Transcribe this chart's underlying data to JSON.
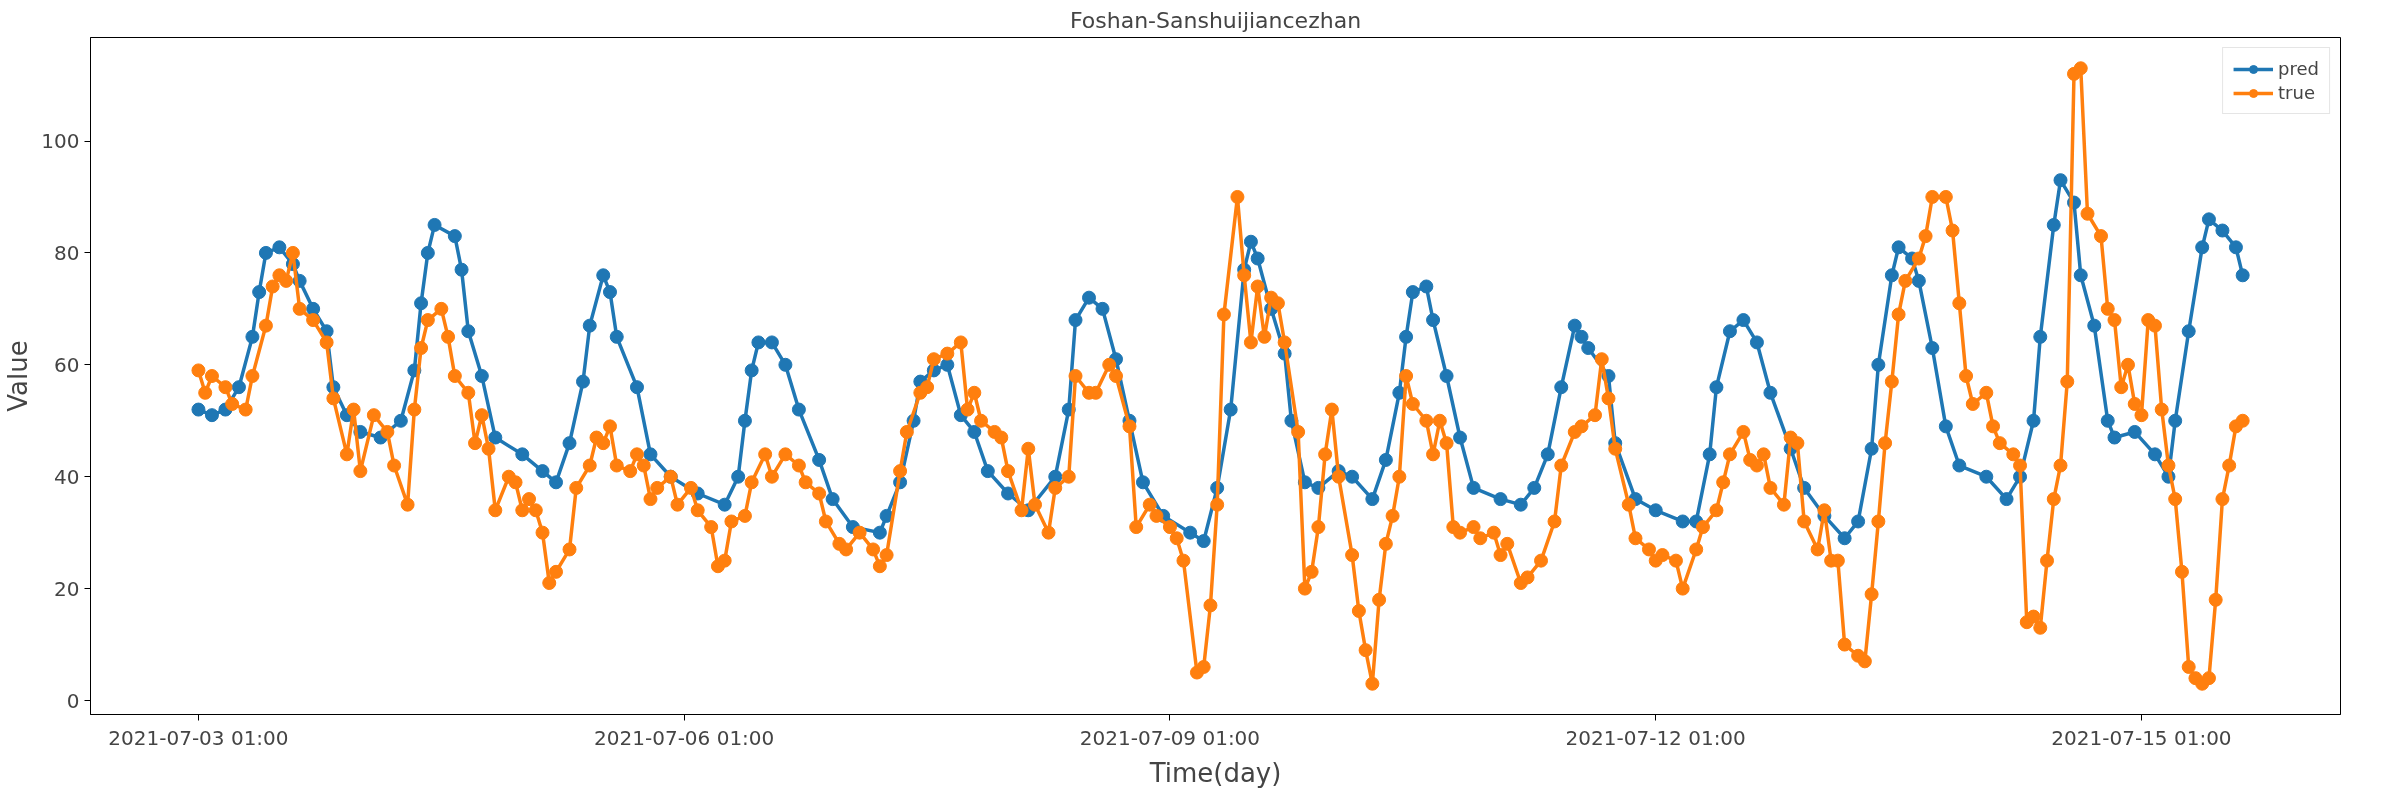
{
  "chart_data": {
    "type": "line",
    "title": "Foshan-Sanshuijiancezhan",
    "xlabel": "Time(day)",
    "ylabel": "Value",
    "xlim": [
      "2021-07-02T09:00",
      "2021-07-16T06:30"
    ],
    "ylim": [
      -2.5,
      118.5
    ],
    "xticks": [
      {
        "value": "2021-07-03T01:00",
        "label": "2021-07-03 01:00"
      },
      {
        "value": "2021-07-06T01:00",
        "label": "2021-07-06 01:00"
      },
      {
        "value": "2021-07-09T01:00",
        "label": "2021-07-09 01:00"
      },
      {
        "value": "2021-07-12T01:00",
        "label": "2021-07-12 01:00"
      },
      {
        "value": "2021-07-15T01:00",
        "label": "2021-07-15 01:00"
      }
    ],
    "yticks": [
      0,
      20,
      40,
      60,
      80,
      100
    ],
    "grid": false,
    "legend": "top right",
    "marker": "circle",
    "line_style": "solid",
    "series": [
      {
        "name": "pred",
        "color": "#1f77b4",
        "x": [
          "2021-07-03T01:00",
          "2021-07-03T03:00",
          "2021-07-03T05:00",
          "2021-07-03T07:00",
          "2021-07-03T09:00",
          "2021-07-03T10:00",
          "2021-07-03T11:00",
          "2021-07-03T13:00",
          "2021-07-03T15:00",
          "2021-07-03T16:00",
          "2021-07-03T18:00",
          "2021-07-03T20:00",
          "2021-07-03T21:00",
          "2021-07-03T23:00",
          "2021-07-04T01:00",
          "2021-07-04T04:00",
          "2021-07-04T07:00",
          "2021-07-04T09:00",
          "2021-07-04T10:00",
          "2021-07-04T11:00",
          "2021-07-04T12:00",
          "2021-07-04T15:00",
          "2021-07-04T16:00",
          "2021-07-04T17:00",
          "2021-07-04T19:00",
          "2021-07-04T21:00",
          "2021-07-05T01:00",
          "2021-07-05T04:00",
          "2021-07-05T06:00",
          "2021-07-05T08:00",
          "2021-07-05T10:00",
          "2021-07-05T11:00",
          "2021-07-05T13:00",
          "2021-07-05T14:00",
          "2021-07-05T15:00",
          "2021-07-05T18:00",
          "2021-07-05T20:00",
          "2021-07-05T23:00",
          "2021-07-06T03:00",
          "2021-07-06T07:00",
          "2021-07-06T09:00",
          "2021-07-06T10:00",
          "2021-07-06T11:00",
          "2021-07-06T12:00",
          "2021-07-06T14:00",
          "2021-07-06T16:00",
          "2021-07-06T18:00",
          "2021-07-06T21:00",
          "2021-07-06T23:00",
          "2021-07-07T02:00",
          "2021-07-07T06:00",
          "2021-07-07T07:00",
          "2021-07-07T09:00",
          "2021-07-07T11:00",
          "2021-07-07T12:00",
          "2021-07-07T14:00",
          "2021-07-07T16:00",
          "2021-07-07T18:00",
          "2021-07-07T20:00",
          "2021-07-07T22:00",
          "2021-07-08T01:00",
          "2021-07-08T04:00",
          "2021-07-08T08:00",
          "2021-07-08T10:00",
          "2021-07-08T11:00",
          "2021-07-08T13:00",
          "2021-07-08T15:00",
          "2021-07-08T17:00",
          "2021-07-08T19:00",
          "2021-07-08T21:00",
          "2021-07-09T00:00",
          "2021-07-09T04:00",
          "2021-07-09T06:00",
          "2021-07-09T08:00",
          "2021-07-09T10:00",
          "2021-07-09T12:00",
          "2021-07-09T13:00",
          "2021-07-09T14:00",
          "2021-07-09T16:00",
          "2021-07-09T18:00",
          "2021-07-09T19:00",
          "2021-07-09T21:00",
          "2021-07-09T23:00",
          "2021-07-10T02:00",
          "2021-07-10T04:00",
          "2021-07-10T07:00",
          "2021-07-10T09:00",
          "2021-07-10T11:00",
          "2021-07-10T12:00",
          "2021-07-10T13:00",
          "2021-07-10T15:00",
          "2021-07-10T16:00",
          "2021-07-10T18:00",
          "2021-07-10T20:00",
          "2021-07-10T22:00",
          "2021-07-11T02:00",
          "2021-07-11T05:00",
          "2021-07-11T07:00",
          "2021-07-11T09:00",
          "2021-07-11T11:00",
          "2021-07-11T13:00",
          "2021-07-11T14:00",
          "2021-07-11T15:00",
          "2021-07-11T18:00",
          "2021-07-11T19:00",
          "2021-07-11T22:00",
          "2021-07-12T01:00",
          "2021-07-12T05:00",
          "2021-07-12T07:00",
          "2021-07-12T09:00",
          "2021-07-12T10:00",
          "2021-07-12T12:00",
          "2021-07-12T14:00",
          "2021-07-12T16:00",
          "2021-07-12T18:00",
          "2021-07-12T21:00",
          "2021-07-12T23:00",
          "2021-07-13T02:00",
          "2021-07-13T05:00",
          "2021-07-13T07:00",
          "2021-07-13T09:00",
          "2021-07-13T10:00",
          "2021-07-13T12:00",
          "2021-07-13T13:00",
          "2021-07-13T15:00",
          "2021-07-13T16:00",
          "2021-07-13T18:00",
          "2021-07-13T20:00",
          "2021-07-13T22:00",
          "2021-07-14T02:00",
          "2021-07-14T05:00",
          "2021-07-14T07:00",
          "2021-07-14T09:00",
          "2021-07-14T10:00",
          "2021-07-14T12:00",
          "2021-07-14T13:00",
          "2021-07-14T15:00",
          "2021-07-14T16:00",
          "2021-07-14T18:00",
          "2021-07-14T20:00",
          "2021-07-14T21:00",
          "2021-07-15T00:00",
          "2021-07-15T03:00",
          "2021-07-15T05:00",
          "2021-07-15T06:00",
          "2021-07-15T08:00",
          "2021-07-15T10:00",
          "2021-07-15T11:00",
          "2021-07-15T13:00",
          "2021-07-15T15:00",
          "2021-07-15T16:00"
        ],
        "values": [
          52,
          51,
          52,
          56,
          65,
          73,
          80,
          81,
          78,
          75,
          70,
          66,
          56,
          51,
          48,
          47,
          50,
          59,
          71,
          80,
          85,
          83,
          77,
          66,
          58,
          47,
          44,
          41,
          39,
          46,
          57,
          67,
          76,
          73,
          65,
          56,
          44,
          40,
          37,
          35,
          40,
          50,
          59,
          64,
          64,
          60,
          52,
          43,
          36,
          31,
          30,
          33,
          39,
          50,
          57,
          59,
          60,
          51,
          48,
          41,
          37,
          34,
          40,
          52,
          68,
          72,
          70,
          61,
          50,
          39,
          33,
          30,
          28.5,
          38,
          52,
          77,
          82,
          79,
          70,
          62,
          50,
          39,
          38,
          41,
          40,
          36,
          43,
          55,
          65,
          73,
          74,
          68,
          58,
          47,
          38,
          36,
          35,
          38,
          44,
          56,
          67,
          65,
          63,
          58,
          46,
          36,
          34,
          32,
          32,
          44,
          56,
          66,
          68,
          64,
          55,
          45,
          38,
          33,
          29,
          32,
          45,
          60,
          76,
          81,
          79,
          75,
          63,
          49,
          42,
          40,
          36,
          40,
          50,
          65,
          85,
          93,
          89,
          76,
          67,
          50,
          47,
          48,
          44,
          40,
          50,
          66,
          81,
          86,
          84,
          81,
          76
        ]
      },
      {
        "name": "true",
        "color": "#ff7f0e",
        "x": [
          "2021-07-03T01:00",
          "2021-07-03T02:00",
          "2021-07-03T03:00",
          "2021-07-03T05:00",
          "2021-07-03T06:00",
          "2021-07-03T08:00",
          "2021-07-03T09:00",
          "2021-07-03T11:00",
          "2021-07-03T12:00",
          "2021-07-03T13:00",
          "2021-07-03T14:00",
          "2021-07-03T15:00",
          "2021-07-03T16:00",
          "2021-07-03T18:00",
          "2021-07-03T20:00",
          "2021-07-03T21:00",
          "2021-07-03T23:00",
          "2021-07-04T00:00",
          "2021-07-04T01:00",
          "2021-07-04T03:00",
          "2021-07-04T05:00",
          "2021-07-04T06:00",
          "2021-07-04T08:00",
          "2021-07-04T09:00",
          "2021-07-04T10:00",
          "2021-07-04T11:00",
          "2021-07-04T13:00",
          "2021-07-04T14:00",
          "2021-07-04T15:00",
          "2021-07-04T17:00",
          "2021-07-04T18:00",
          "2021-07-04T19:00",
          "2021-07-04T20:00",
          "2021-07-04T21:00",
          "2021-07-04T23:00",
          "2021-07-05T00:00",
          "2021-07-05T01:00",
          "2021-07-05T02:00",
          "2021-07-05T03:00",
          "2021-07-05T04:00",
          "2021-07-05T05:00",
          "2021-07-05T06:00",
          "2021-07-05T08:00",
          "2021-07-05T09:00",
          "2021-07-05T11:00",
          "2021-07-05T12:00",
          "2021-07-05T13:00",
          "2021-07-05T14:00",
          "2021-07-05T15:00",
          "2021-07-05T17:00",
          "2021-07-05T18:00",
          "2021-07-05T19:00",
          "2021-07-05T20:00",
          "2021-07-05T21:00",
          "2021-07-05T23:00",
          "2021-07-06T00:00",
          "2021-07-06T02:00",
          "2021-07-06T03:00",
          "2021-07-06T05:00",
          "2021-07-06T06:00",
          "2021-07-06T07:00",
          "2021-07-06T08:00",
          "2021-07-06T10:00",
          "2021-07-06T11:00",
          "2021-07-06T13:00",
          "2021-07-06T14:00",
          "2021-07-06T16:00",
          "2021-07-06T18:00",
          "2021-07-06T19:00",
          "2021-07-06T21:00",
          "2021-07-06T22:00",
          "2021-07-07T00:00",
          "2021-07-07T01:00",
          "2021-07-07T03:00",
          "2021-07-07T05:00",
          "2021-07-07T06:00",
          "2021-07-07T07:00",
          "2021-07-07T09:00",
          "2021-07-07T10:00",
          "2021-07-07T12:00",
          "2021-07-07T13:00",
          "2021-07-07T14:00",
          "2021-07-07T16:00",
          "2021-07-07T18:00",
          "2021-07-07T19:00",
          "2021-07-07T20:00",
          "2021-07-07T21:00",
          "2021-07-07T23:00",
          "2021-07-08T00:00",
          "2021-07-08T01:00",
          "2021-07-08T03:00",
          "2021-07-08T04:00",
          "2021-07-08T05:00",
          "2021-07-08T07:00",
          "2021-07-08T08:00",
          "2021-07-08T10:00",
          "2021-07-08T11:00",
          "2021-07-08T13:00",
          "2021-07-08T14:00",
          "2021-07-08T16:00",
          "2021-07-08T17:00",
          "2021-07-08T19:00",
          "2021-07-08T20:00",
          "2021-07-08T22:00",
          "2021-07-08T23:00",
          "2021-07-09T01:00",
          "2021-07-09T02:00",
          "2021-07-09T03:00",
          "2021-07-09T05:00",
          "2021-07-09T06:00",
          "2021-07-09T07:00",
          "2021-07-09T08:00",
          "2021-07-09T09:00",
          "2021-07-09T11:00",
          "2021-07-09T12:00",
          "2021-07-09T13:00",
          "2021-07-09T14:00",
          "2021-07-09T15:00",
          "2021-07-09T16:00",
          "2021-07-09T17:00",
          "2021-07-09T18:00",
          "2021-07-09T20:00",
          "2021-07-09T21:00",
          "2021-07-09T22:00",
          "2021-07-09T23:00",
          "2021-07-10T00:00",
          "2021-07-10T01:00",
          "2021-07-10T02:00",
          "2021-07-10T04:00",
          "2021-07-10T05:00",
          "2021-07-10T06:00",
          "2021-07-10T07:00",
          "2021-07-10T08:00",
          "2021-07-10T09:00",
          "2021-07-10T10:00",
          "2021-07-10T11:00",
          "2021-07-10T12:00",
          "2021-07-10T13:00",
          "2021-07-10T15:00",
          "2021-07-10T16:00",
          "2021-07-10T17:00",
          "2021-07-10T18:00",
          "2021-07-10T19:00",
          "2021-07-10T20:00",
          "2021-07-10T22:00",
          "2021-07-10T23:00",
          "2021-07-11T01:00",
          "2021-07-11T02:00",
          "2021-07-11T03:00",
          "2021-07-11T05:00",
          "2021-07-11T06:00",
          "2021-07-11T08:00",
          "2021-07-11T10:00",
          "2021-07-11T11:00",
          "2021-07-11T13:00",
          "2021-07-11T14:00",
          "2021-07-11T16:00",
          "2021-07-11T17:00",
          "2021-07-11T18:00",
          "2021-07-11T19:00",
          "2021-07-11T21:00",
          "2021-07-11T22:00",
          "2021-07-12T00:00",
          "2021-07-12T01:00",
          "2021-07-12T02:00",
          "2021-07-12T04:00",
          "2021-07-12T05:00",
          "2021-07-12T07:00",
          "2021-07-12T08:00",
          "2021-07-12T10:00",
          "2021-07-12T11:00",
          "2021-07-12T12:00",
          "2021-07-12T14:00",
          "2021-07-12T15:00",
          "2021-07-12T16:00",
          "2021-07-12T17:00",
          "2021-07-12T18:00",
          "2021-07-12T20:00",
          "2021-07-12T21:00",
          "2021-07-12T22:00",
          "2021-07-12T23:00",
          "2021-07-13T01:00",
          "2021-07-13T02:00",
          "2021-07-13T03:00",
          "2021-07-13T04:00",
          "2021-07-13T05:00",
          "2021-07-13T07:00",
          "2021-07-13T08:00",
          "2021-07-13T09:00",
          "2021-07-13T10:00",
          "2021-07-13T11:00",
          "2021-07-13T12:00",
          "2021-07-13T13:00",
          "2021-07-13T14:00",
          "2021-07-13T16:00",
          "2021-07-13T17:00",
          "2021-07-13T18:00",
          "2021-07-13T20:00",
          "2021-07-13T21:00",
          "2021-07-13T22:00",
          "2021-07-13T23:00",
          "2021-07-14T00:00",
          "2021-07-14T02:00",
          "2021-07-14T03:00",
          "2021-07-14T04:00",
          "2021-07-14T06:00",
          "2021-07-14T07:00",
          "2021-07-14T08:00",
          "2021-07-14T09:00",
          "2021-07-14T10:00",
          "2021-07-14T11:00",
          "2021-07-14T12:00",
          "2021-07-14T13:00",
          "2021-07-14T14:00",
          "2021-07-14T15:00",
          "2021-07-14T16:00",
          "2021-07-14T17:00",
          "2021-07-14T19:00",
          "2021-07-14T20:00",
          "2021-07-14T21:00",
          "2021-07-14T22:00",
          "2021-07-14T23:00",
          "2021-07-15T00:00",
          "2021-07-15T01:00",
          "2021-07-15T02:00",
          "2021-07-15T03:00",
          "2021-07-15T04:00",
          "2021-07-15T05:00",
          "2021-07-15T06:00",
          "2021-07-15T07:00",
          "2021-07-15T08:00",
          "2021-07-15T09:00",
          "2021-07-15T10:00",
          "2021-07-15T11:00",
          "2021-07-15T12:00",
          "2021-07-15T13:00",
          "2021-07-15T14:00",
          "2021-07-15T15:00",
          "2021-07-15T16:00"
        ],
        "values": [
          59,
          55,
          58,
          56,
          53,
          52,
          58,
          67,
          74,
          76,
          75,
          80,
          70,
          68,
          64,
          54,
          44,
          52,
          41,
          51,
          48,
          42,
          35,
          52,
          63,
          68,
          70,
          65,
          58,
          55,
          46,
          51,
          45,
          34,
          40,
          39,
          34,
          36,
          34,
          30,
          21,
          23,
          27,
          38,
          42,
          47,
          46,
          49,
          42,
          41,
          44,
          42,
          36,
          38,
          40,
          35,
          38,
          34,
          31,
          24,
          25,
          32,
          33,
          39,
          44,
          40,
          44,
          42,
          39,
          37,
          32,
          28,
          27,
          30,
          27,
          24,
          26,
          41,
          48,
          55,
          56,
          61,
          62,
          64,
          52,
          55,
          50,
          48,
          47,
          41,
          34,
          45,
          35,
          30,
          38,
          40,
          58,
          55,
          55,
          60,
          58,
          49,
          31,
          35,
          33,
          31,
          29,
          25,
          5,
          6,
          17,
          35,
          69,
          90,
          76,
          64,
          74,
          65,
          72,
          71,
          64,
          48,
          20,
          23,
          31,
          44,
          52,
          40,
          26,
          16,
          9,
          3,
          18,
          28,
          33,
          40,
          58,
          53,
          50,
          44,
          50,
          46,
          31,
          30,
          31,
          29,
          30,
          26,
          28,
          21,
          22,
          25,
          32,
          42,
          48,
          49,
          51,
          61,
          54,
          45,
          35,
          29,
          27,
          25,
          26,
          25,
          20,
          27,
          31,
          34,
          39,
          44,
          48,
          43,
          42,
          44,
          38,
          35,
          47,
          46,
          32,
          27,
          34,
          25,
          25,
          10,
          8,
          7,
          19,
          32,
          46,
          57,
          69,
          75,
          79,
          83,
          90,
          90,
          84,
          71,
          58,
          53,
          55,
          49,
          46,
          44,
          42,
          14,
          15,
          13,
          25,
          36,
          42,
          57,
          112,
          113,
          87,
          83,
          70,
          68,
          56,
          60,
          53,
          51,
          68,
          67,
          52,
          42,
          36,
          23,
          6,
          4,
          3,
          4,
          18,
          36,
          42,
          49,
          50
        ]
      }
    ]
  }
}
